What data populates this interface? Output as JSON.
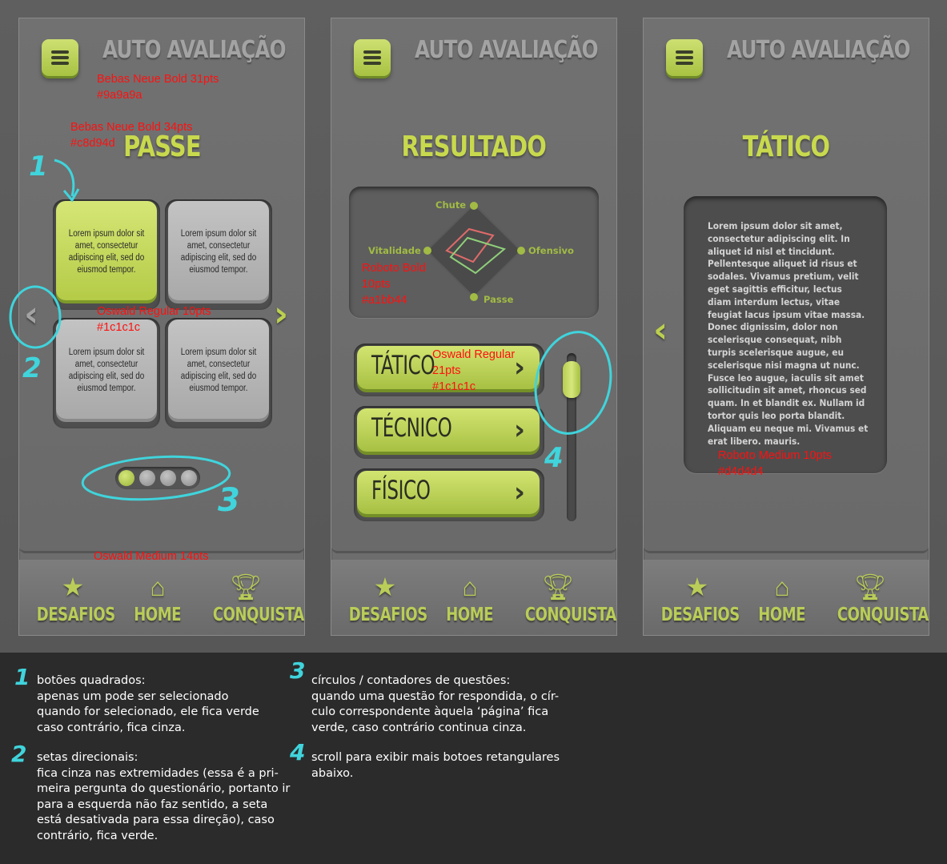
{
  "app_title": "AUTO AVALIAÇÃO",
  "nav": {
    "desafios": "DESAFIOS",
    "home": "HOME",
    "conquistas": "CONQUISTAS"
  },
  "screen1": {
    "section_title": "PASSE",
    "tiles": [
      {
        "text": "Lorem ipsum dolor sit amet, consectetur adipiscing elit, sed do eiusmod tempor.",
        "selected": true
      },
      {
        "text": "Lorem ipsum dolor sit amet, consectetur adipiscing elit, sed do eiusmod tempor.",
        "selected": false
      },
      {
        "text": "Lorem ipsum dolor sit amet, consectetur adipiscing elit, sed do eiusmod tempor.",
        "selected": false
      },
      {
        "text": "Lorem ipsum dolor sit amet, consectetur adipiscing elit, sed do eiusmod tempor.",
        "selected": false
      }
    ],
    "arrow_left": "‹",
    "arrow_right": "›",
    "page_dots": {
      "total": 4,
      "active": 1
    },
    "annotations": {
      "app_title": "Bebas Neue Bold 31pts\n#9a9a9a",
      "section_title": "Bebas Neue Bold 34pts\n#c8d94d",
      "tiles": "Oswald Regular 10pts\n#1c1c1c",
      "nav": "Oswald Medium 14pts\n#b9cd58"
    },
    "marks": {
      "m1": "1",
      "m2": "2",
      "m3": "3"
    }
  },
  "screen2": {
    "section_title": "RESULTADO",
    "radar": {
      "axes": [
        "Chute",
        "Ofensivo",
        "Passe",
        "Vitalidade"
      ],
      "series_colors": [
        "#e06a6a",
        "#8fcf7a"
      ]
    },
    "buttons": [
      "TÁTICO",
      "TÉCNICO",
      "FÍSICO"
    ],
    "chevron": "›",
    "annotations": {
      "radar": "Roboto Bold\n10pts\n#a1bb44",
      "buttons": "Oswald Regular\n21pts\n#1c1c1c"
    },
    "marks": {
      "m4": "4"
    }
  },
  "screen3": {
    "section_title": "TÁTICO",
    "arrow_left": "‹",
    "body_text": "Lorem ipsum dolor sit amet, consectetur adipiscing elit. In aliquet id nisl et tincidunt. Pellentesque aliquet id risus et sodales. Vivamus pretium, velit eget sagittis efficitur, lectus diam interdum lectus, vitae feugiat lacus ipsum vitae massa. Donec dignissim, dolor non scelerisque consequat, nibh turpis scelerisque augue, eu scelerisque nisi magna ut nunc. Fusce leo augue, iaculis sit amet sollicitudin sit amet, rhoncus sed quam. In et blandit ex. Nullam id tortor quis leo porta blandit. Aliquam eu neque mi. Vivamus et erat libero. mauris.",
    "annotations": {
      "body": "Roboto Medium 10pts\n#d4d4d4"
    }
  },
  "notes": {
    "n1": {
      "num": "1",
      "text": "botões quadrados:\napenas um pode ser selecionado\nquando for selecionado, ele fica verde\ncaso contrário, fica cinza."
    },
    "n2": {
      "num": "2",
      "text": "setas direcionais:\nfica cinza nas extremidades (essa é a pri-\nmeira pergunta do questionário, portanto ir\npara a esquerda não faz sentido, a seta\nestá desativada para essa direção), caso\ncontrário, fica verde."
    },
    "n3": {
      "num": "3",
      "text": "círculos / contadores de questões:\nquando uma questão for respondida, o cír-\nculo correspondente àquela ‘página’ fica\nverde, caso contrário continua cinza."
    },
    "n4": {
      "num": "4",
      "text": "scroll para exibir mais botoes retangulares\nabaixo."
    }
  },
  "colors": {
    "accent_green": "#c8d94d",
    "nav_green": "#b9cd58",
    "title_gray": "#9a9a9a",
    "annotation_red": "#ff1010",
    "cyan_marker": "#40d4dc"
  },
  "icons": [
    "menu-icon",
    "star-icon",
    "home-icon",
    "trophy-icon",
    "chevron-left-icon",
    "chevron-right-icon"
  ]
}
